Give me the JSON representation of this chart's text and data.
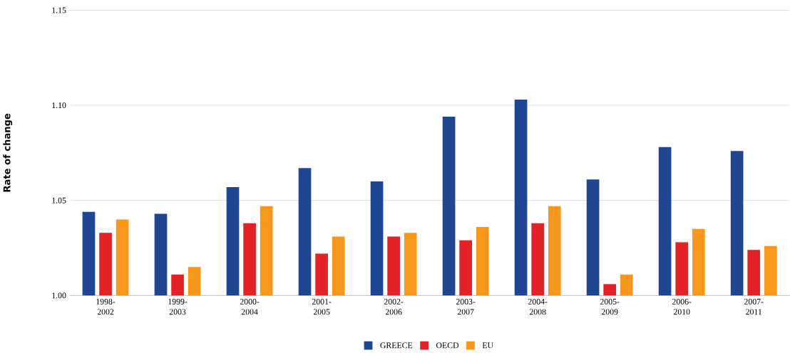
{
  "chart_data": {
    "type": "bar",
    "ylabel": "Rate of change",
    "categories": [
      "1998-2002",
      "1999-2003",
      "2000-2004",
      "2001-2005",
      "2002-2006",
      "2003-2007",
      "2004-2008",
      "2005-2009",
      "2006-2010",
      "2007-2011"
    ],
    "series": [
      {
        "name": "GREECE",
        "color": "#1f4690",
        "values": [
          1.044,
          1.043,
          1.057,
          1.067,
          1.06,
          1.094,
          1.103,
          1.061,
          1.078,
          1.076
        ]
      },
      {
        "name": "OECD",
        "color": "#e32228",
        "values": [
          1.033,
          1.011,
          1.038,
          1.022,
          1.031,
          1.029,
          1.038,
          1.006,
          1.028,
          1.024
        ]
      },
      {
        "name": "EU",
        "color": "#f7981d",
        "values": [
          1.04,
          1.015,
          1.047,
          1.031,
          1.033,
          1.036,
          1.047,
          1.011,
          1.035,
          1.026
        ]
      }
    ],
    "ylim": [
      1.0,
      1.15
    ],
    "yticks": [
      {
        "value": 1.0,
        "label": "1.00"
      },
      1.05,
      {
        "value": 1.1,
        "label": "1.10"
      },
      1.15
    ],
    "grid": "y",
    "legend": "bottom"
  }
}
